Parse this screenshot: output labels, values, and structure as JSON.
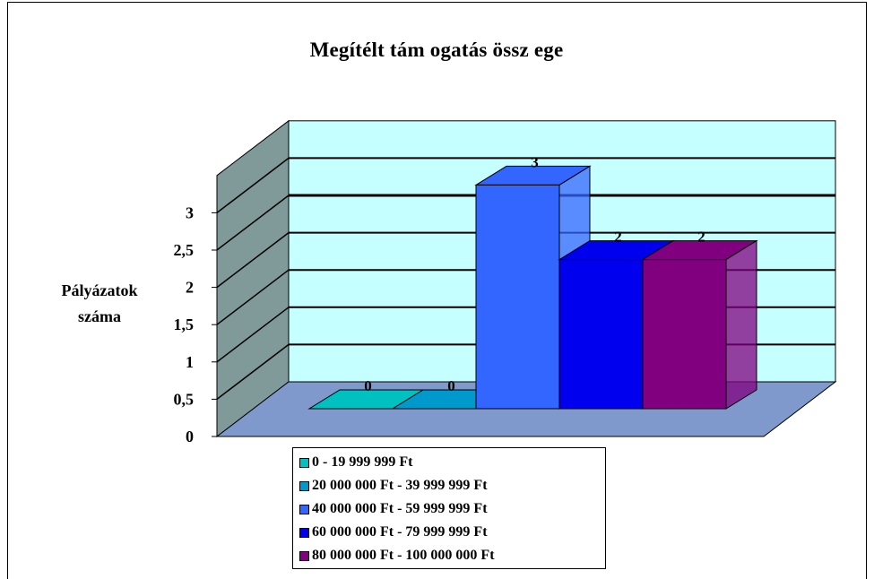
{
  "chart_data": {
    "type": "bar",
    "title": "Megítélt tám ogatás össz ege",
    "ylabel_lines": [
      "Pályázatok",
      "száma"
    ],
    "ylim": [
      0,
      3.5
    ],
    "yticks": [
      "0",
      "0,5",
      "1",
      "1,5",
      "2",
      "2,5",
      "3"
    ],
    "ytick_values": [
      0,
      0.5,
      1,
      1.5,
      2,
      2.5,
      3
    ],
    "categories": [
      "0 - 19 999 999 Ft",
      "20 000 000  Ft - 39 999 999 Ft",
      "40 000 000  Ft - 59 999 999 Ft",
      "60 000 000  Ft - 79 999 999 Ft",
      "80 000 000  Ft - 100 000 000  Ft"
    ],
    "values": [
      0,
      0,
      3,
      2,
      2
    ],
    "value_labels": [
      "0",
      "0",
      "3",
      "2",
      "2"
    ],
    "colors": [
      "#00c0c0",
      "#0099cc",
      "#3366ff",
      "#0000ee",
      "#800080"
    ],
    "wall_color": "#c6ffff",
    "side_wall_color": "#809a9a",
    "floor_color": "#7f99cc",
    "grid": true,
    "legend_position": "bottom",
    "projection": "3d"
  }
}
